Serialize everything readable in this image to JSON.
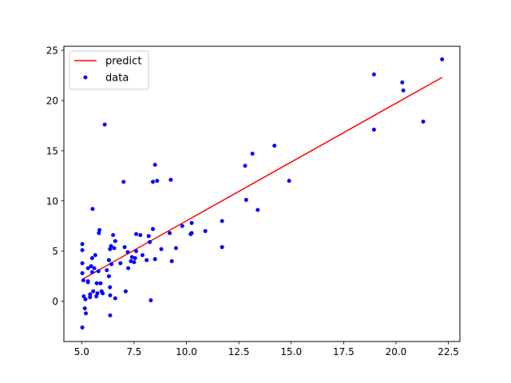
{
  "chart_data": {
    "type": "scatter",
    "title": "",
    "xlabel": "",
    "ylabel": "",
    "xlim": [
      4.15,
      23.05
    ],
    "ylim": [
      -4.0,
      25.4
    ],
    "xticks": [
      5.0,
      7.5,
      10.0,
      12.5,
      15.0,
      17.5,
      20.0,
      22.5
    ],
    "xtick_labels": [
      "5.0",
      "7.5",
      "10.0",
      "12.5",
      "15.0",
      "17.5",
      "20.0",
      "22.5"
    ],
    "yticks": [
      0,
      5,
      10,
      15,
      20,
      25
    ],
    "ytick_labels": [
      "0",
      "5",
      "10",
      "15",
      "20",
      "25"
    ],
    "grid": false,
    "legend_position": "top-left",
    "series": [
      {
        "name": "predict",
        "kind": "line",
        "color": "#ff0000",
        "x": [
          5.03,
          22.2
        ],
        "y": [
          2.2,
          22.3
        ]
      },
      {
        "name": "data",
        "kind": "scatter",
        "color": "#0000ff",
        "points": [
          [
            5.03,
            5.7
          ],
          [
            5.03,
            5.1
          ],
          [
            5.03,
            3.8
          ],
          [
            5.03,
            2.8
          ],
          [
            5.1,
            0.5
          ],
          [
            5.15,
            -0.7
          ],
          [
            5.2,
            -1.2
          ],
          [
            5.03,
            -2.6
          ],
          [
            5.08,
            2.1
          ],
          [
            5.18,
            0.2
          ],
          [
            5.3,
            3.3
          ],
          [
            5.3,
            2.0
          ],
          [
            5.3,
            1.9
          ],
          [
            5.4,
            0.7
          ],
          [
            5.4,
            0.4
          ],
          [
            5.45,
            3.5
          ],
          [
            5.5,
            4.3
          ],
          [
            5.52,
            9.2
          ],
          [
            5.5,
            2.9
          ],
          [
            5.55,
            1.0
          ],
          [
            5.6,
            3.3
          ],
          [
            5.65,
            4.6
          ],
          [
            5.7,
            0.5
          ],
          [
            5.72,
            1.8
          ],
          [
            5.75,
            0.8
          ],
          [
            5.8,
            3.0
          ],
          [
            5.85,
            7.1
          ],
          [
            5.82,
            6.8
          ],
          [
            5.9,
            1.8
          ],
          [
            5.95,
            1.0
          ],
          [
            6.0,
            0.8
          ],
          [
            6.1,
            17.6
          ],
          [
            6.2,
            3.1
          ],
          [
            6.3,
            4.1
          ],
          [
            6.3,
            2.5
          ],
          [
            6.35,
            1.4
          ],
          [
            6.36,
            0.6
          ],
          [
            6.36,
            -1.4
          ],
          [
            6.35,
            5.2
          ],
          [
            6.4,
            5.5
          ],
          [
            6.42,
            3.7
          ],
          [
            6.5,
            6.6
          ],
          [
            6.55,
            5.3
          ],
          [
            6.6,
            0.3
          ],
          [
            6.6,
            6.0
          ],
          [
            6.85,
            3.8
          ],
          [
            7.0,
            11.9
          ],
          [
            7.05,
            5.4
          ],
          [
            7.1,
            1.0
          ],
          [
            7.2,
            4.9
          ],
          [
            7.22,
            3.3
          ],
          [
            7.35,
            4.0
          ],
          [
            7.4,
            4.4
          ],
          [
            7.5,
            3.9
          ],
          [
            7.55,
            4.3
          ],
          [
            7.6,
            6.7
          ],
          [
            7.6,
            5.0
          ],
          [
            7.8,
            6.6
          ],
          [
            7.9,
            4.6
          ],
          [
            8.1,
            4.1
          ],
          [
            8.2,
            6.5
          ],
          [
            8.25,
            5.9
          ],
          [
            8.3,
            0.1
          ],
          [
            8.4,
            11.9
          ],
          [
            8.4,
            7.2
          ],
          [
            8.5,
            13.6
          ],
          [
            8.5,
            4.2
          ],
          [
            8.6,
            12.0
          ],
          [
            8.8,
            5.2
          ],
          [
            9.2,
            6.8
          ],
          [
            9.25,
            12.1
          ],
          [
            9.3,
            4.0
          ],
          [
            9.5,
            5.3
          ],
          [
            9.8,
            7.5
          ],
          [
            10.2,
            6.7
          ],
          [
            10.25,
            6.8
          ],
          [
            10.25,
            7.8
          ],
          [
            10.9,
            7.0
          ],
          [
            11.7,
            8.0
          ],
          [
            11.7,
            5.4
          ],
          [
            12.8,
            13.5
          ],
          [
            12.85,
            10.1
          ],
          [
            13.15,
            14.7
          ],
          [
            13.4,
            9.1
          ],
          [
            14.2,
            15.5
          ],
          [
            14.9,
            12.0
          ],
          [
            18.95,
            22.6
          ],
          [
            18.95,
            17.1
          ],
          [
            20.3,
            21.8
          ],
          [
            20.35,
            21.0
          ],
          [
            21.3,
            17.9
          ],
          [
            22.2,
            24.1
          ]
        ]
      }
    ]
  }
}
